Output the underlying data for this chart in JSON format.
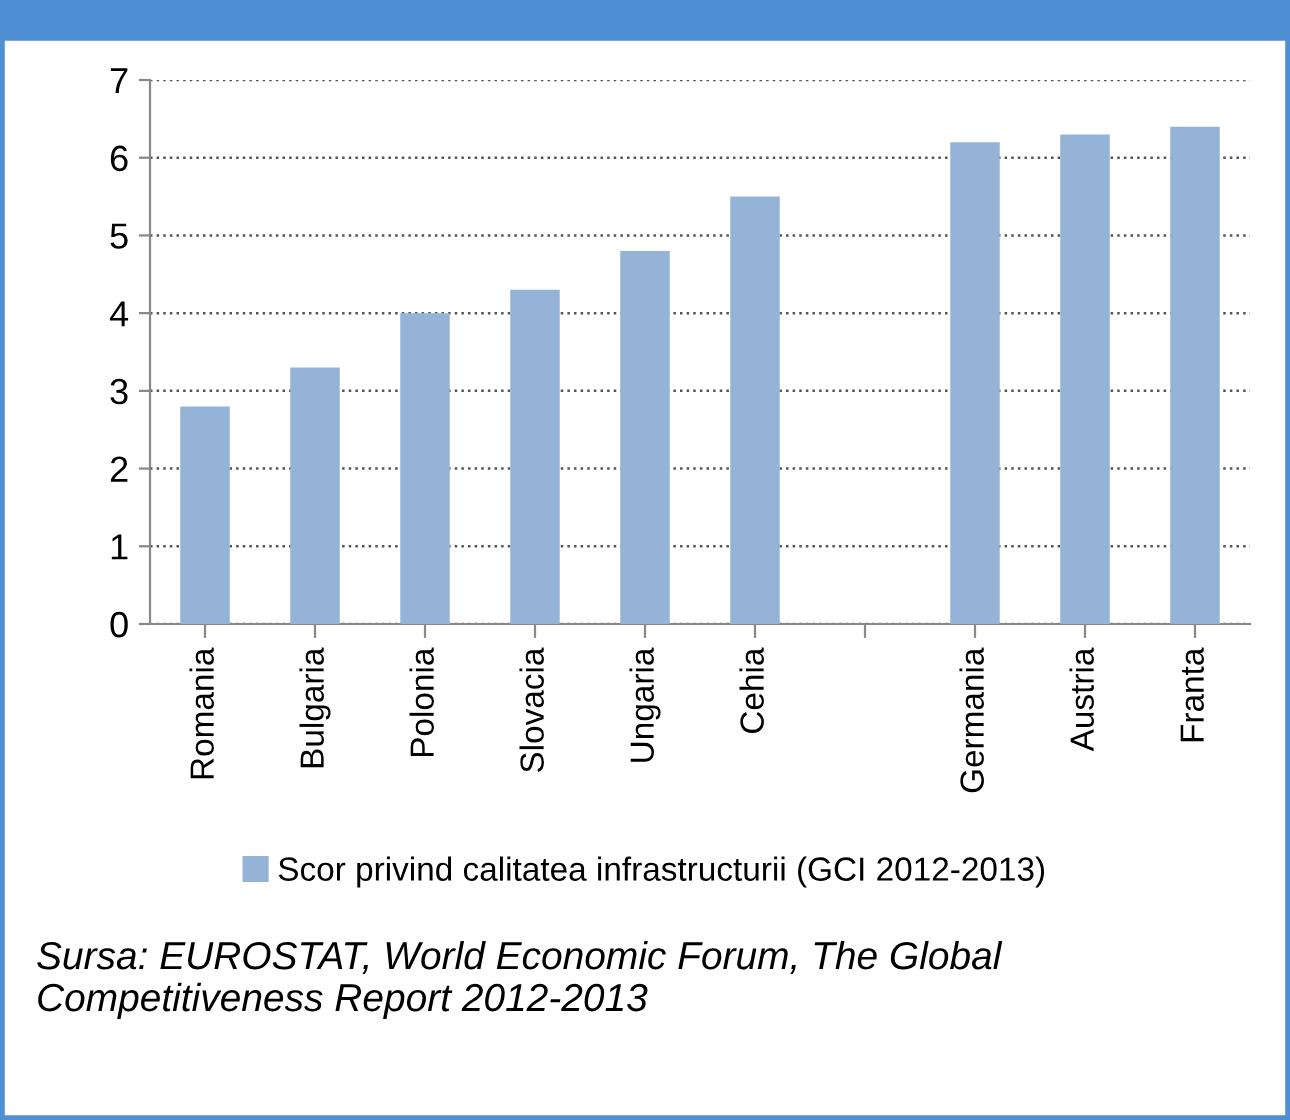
{
  "chart_data": {
    "type": "bar",
    "categories": [
      "Romania",
      "Bulgaria",
      "Polonia",
      "Slovacia",
      "Ungaria",
      "Cehia",
      null,
      "Germania",
      "Austria",
      "Franta"
    ],
    "series": [
      {
        "name": "Scor privind calitatea infrastructurii (GCI 2012-2013)",
        "color": "#95b3d7",
        "values": [
          2.8,
          3.3,
          4.0,
          4.3,
          4.8,
          5.5,
          null,
          6.2,
          6.3,
          6.4
        ]
      }
    ],
    "ylim": [
      0,
      7
    ],
    "yticks": [
      0,
      1,
      2,
      3,
      4,
      5,
      6,
      7
    ],
    "grid": "y",
    "legend": "bottom",
    "annotations": [
      "Sursa: EUROSTAT, World Economic Forum, The Global Competitiveness Report 2012-2013"
    ]
  }
}
